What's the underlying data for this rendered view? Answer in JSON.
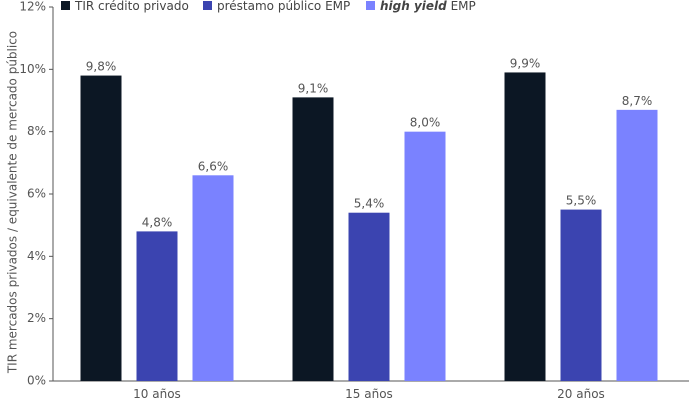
{
  "chart_data": {
    "type": "bar",
    "categories": [
      "10 años",
      "15 años",
      "20 años"
    ],
    "series": [
      {
        "name": "TIR crédito privado",
        "values": [
          9.8,
          9.1,
          9.9
        ],
        "labels": [
          "9,8%",
          "9,1%",
          "9,9%"
        ],
        "color": "#0c1724"
      },
      {
        "name": "préstamo público EMP",
        "values": [
          4.8,
          5.4,
          5.5
        ],
        "labels": [
          "4,8%",
          "5,4%",
          "5,5%"
        ],
        "color": "#3b44b0"
      },
      {
        "name_plain": "high yield",
        "name_suffix": " EMP",
        "values": [
          6.6,
          8.0,
          8.7
        ],
        "labels": [
          "6,6%",
          "8,0%",
          "8,7%"
        ],
        "color": "#7a82ff"
      }
    ],
    "ylabel": "TIR mercados privados / equivalente de mercado público",
    "ylim": [
      0,
      12
    ],
    "yticks": [
      {
        "value": 0,
        "label": "0%"
      },
      {
        "value": 2,
        "label": "2%"
      },
      {
        "value": 4,
        "label": "4%"
      },
      {
        "value": 6,
        "label": "6%"
      },
      {
        "value": 8,
        "label": "8%"
      },
      {
        "value": 10,
        "label": "10%"
      },
      {
        "value": 12,
        "label": "12%"
      }
    ],
    "grid": false,
    "legend_position": "top"
  }
}
